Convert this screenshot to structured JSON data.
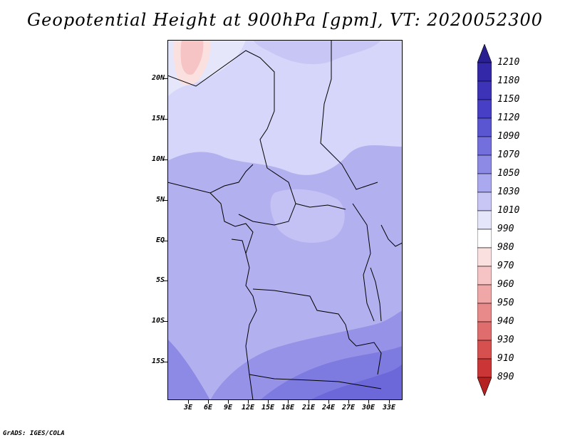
{
  "title": "Geopotential Height at 900hPa [gpm], VT: 2020052300",
  "credit": "GrADS: IGES/COLA",
  "axes": {
    "lat_labels": [
      "20N",
      "15N",
      "10N",
      "5N",
      "EQ",
      "5S",
      "10S",
      "15S"
    ],
    "lon_labels": [
      "3E",
      "6E",
      "9E",
      "12E",
      "15E",
      "18E",
      "21E",
      "24E",
      "27E",
      "30E",
      "33E"
    ]
  },
  "legend": {
    "top_arrow_color": "#2a1f90",
    "bottom_arrow_color": "#b52020",
    "levels": [
      {
        "label": "1210",
        "color": "#2c2196"
      },
      {
        "label": "1180",
        "color": "#3328a8"
      },
      {
        "label": "1150",
        "color": "#3c33b8"
      },
      {
        "label": "1120",
        "color": "#4740c6"
      },
      {
        "label": "1090",
        "color": "#5a56d2"
      },
      {
        "label": "1070",
        "color": "#7370de"
      },
      {
        "label": "1050",
        "color": "#8d8ae6"
      },
      {
        "label": "1030",
        "color": "#aaa8ee"
      },
      {
        "label": "1010",
        "color": "#c7c6f5"
      },
      {
        "label": "990",
        "color": "#e6e6fb"
      },
      {
        "label": "980",
        "color": "#ffffff"
      },
      {
        "label": "970",
        "color": "#fbe0e0"
      },
      {
        "label": "960",
        "color": "#f6c4c4"
      },
      {
        "label": "950",
        "color": "#efa7a7"
      },
      {
        "label": "940",
        "color": "#e88a8a"
      },
      {
        "label": "930",
        "color": "#e06d6d"
      },
      {
        "label": "910",
        "color": "#d75050"
      },
      {
        "label": "890",
        "color": "#cc3535"
      },
      {
        "label": "",
        "color": "#c02525"
      }
    ]
  }
}
